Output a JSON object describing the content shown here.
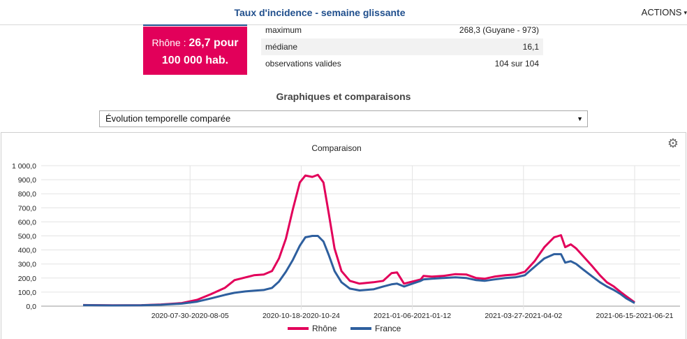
{
  "header": {
    "title": "Taux d'incidence - semaine glissante",
    "actions_label": "ACTIONS"
  },
  "highlight": {
    "region": "Rhône",
    "value": "26,7 pour",
    "unit": "100 000 hab."
  },
  "stats": [
    {
      "label": "maximum",
      "value": "268,3 (Guyane - 973)"
    },
    {
      "label": "médiane",
      "value": "16,1"
    },
    {
      "label": "observations valides",
      "value": "104 sur 104"
    }
  ],
  "section_title": "Graphiques et comparaisons",
  "select": {
    "value": "Évolution temporelle comparée"
  },
  "colors": {
    "rhone": "#e2005a",
    "france": "#2e5f9e",
    "header_blue": "#1f4e8c"
  },
  "chart_data": {
    "type": "line",
    "title": "Comparaison",
    "xlabel": "",
    "ylabel": "",
    "ylim": [
      0,
      1000
    ],
    "yticks": [
      "0,0",
      "100,0",
      "200,0",
      "300,0",
      "400,0",
      "500,0",
      "600,0",
      "700,0",
      "800,0",
      "900,0",
      "1 000,0"
    ],
    "x_start_date": "2020-05-20",
    "x_end_date": "2021-06-21",
    "xticks": [
      {
        "date": "2020-08-05",
        "label": "2020-07-30-2020-08-05"
      },
      {
        "date": "2020-10-24",
        "label": "2020-10-18-2020-10-24"
      },
      {
        "date": "2021-01-12",
        "label": "2021-01-06-2021-01-12"
      },
      {
        "date": "2021-04-02",
        "label": "2021-03-27-2021-04-02"
      },
      {
        "date": "2021-06-21",
        "label": "2021-06-15-2021-06-21"
      }
    ],
    "legend": "bottom-center",
    "series": [
      {
        "name": "Rhône",
        "points": [
          [
            "2020-05-20",
            8
          ],
          [
            "2020-06-10",
            6
          ],
          [
            "2020-07-01",
            7
          ],
          [
            "2020-07-15",
            12
          ],
          [
            "2020-07-30",
            22
          ],
          [
            "2020-08-10",
            45
          ],
          [
            "2020-08-20",
            85
          ],
          [
            "2020-08-30",
            130
          ],
          [
            "2020-09-06",
            185
          ],
          [
            "2020-09-14",
            205
          ],
          [
            "2020-09-20",
            220
          ],
          [
            "2020-09-27",
            225
          ],
          [
            "2020-10-03",
            250
          ],
          [
            "2020-10-08",
            340
          ],
          [
            "2020-10-13",
            480
          ],
          [
            "2020-10-18",
            690
          ],
          [
            "2020-10-23",
            880
          ],
          [
            "2020-10-27",
            930
          ],
          [
            "2020-11-01",
            920
          ],
          [
            "2020-11-05",
            935
          ],
          [
            "2020-11-09",
            880
          ],
          [
            "2020-11-13",
            650
          ],
          [
            "2020-11-17",
            410
          ],
          [
            "2020-11-22",
            250
          ],
          [
            "2020-11-28",
            180
          ],
          [
            "2020-12-05",
            160
          ],
          [
            "2020-12-15",
            170
          ],
          [
            "2020-12-22",
            180
          ],
          [
            "2020-12-28",
            235
          ],
          [
            "2021-01-01",
            240
          ],
          [
            "2021-01-06",
            160
          ],
          [
            "2021-01-12",
            175
          ],
          [
            "2021-01-18",
            190
          ],
          [
            "2021-01-20",
            215
          ],
          [
            "2021-01-26",
            210
          ],
          [
            "2021-02-03",
            215
          ],
          [
            "2021-02-12",
            228
          ],
          [
            "2021-02-20",
            225
          ],
          [
            "2021-02-27",
            200
          ],
          [
            "2021-03-05",
            195
          ],
          [
            "2021-03-12",
            210
          ],
          [
            "2021-03-20",
            220
          ],
          [
            "2021-03-27",
            225
          ],
          [
            "2021-04-03",
            245
          ],
          [
            "2021-04-10",
            320
          ],
          [
            "2021-04-17",
            420
          ],
          [
            "2021-04-24",
            490
          ],
          [
            "2021-04-29",
            505
          ],
          [
            "2021-05-02",
            420
          ],
          [
            "2021-05-06",
            440
          ],
          [
            "2021-05-10",
            410
          ],
          [
            "2021-05-15",
            355
          ],
          [
            "2021-05-21",
            290
          ],
          [
            "2021-05-27",
            220
          ],
          [
            "2021-06-01",
            170
          ],
          [
            "2021-06-06",
            140
          ],
          [
            "2021-06-11",
            100
          ],
          [
            "2021-06-15",
            70
          ],
          [
            "2021-06-21",
            27
          ]
        ]
      },
      {
        "name": "France",
        "points": [
          [
            "2020-05-20",
            7
          ],
          [
            "2020-06-10",
            5
          ],
          [
            "2020-07-01",
            6
          ],
          [
            "2020-07-15",
            10
          ],
          [
            "2020-07-30",
            18
          ],
          [
            "2020-08-10",
            32
          ],
          [
            "2020-08-20",
            55
          ],
          [
            "2020-08-30",
            80
          ],
          [
            "2020-09-06",
            95
          ],
          [
            "2020-09-14",
            105
          ],
          [
            "2020-09-20",
            110
          ],
          [
            "2020-09-27",
            115
          ],
          [
            "2020-10-03",
            130
          ],
          [
            "2020-10-08",
            175
          ],
          [
            "2020-10-13",
            245
          ],
          [
            "2020-10-18",
            330
          ],
          [
            "2020-10-23",
            430
          ],
          [
            "2020-10-27",
            490
          ],
          [
            "2020-11-01",
            500
          ],
          [
            "2020-11-05",
            500
          ],
          [
            "2020-11-09",
            460
          ],
          [
            "2020-11-13",
            360
          ],
          [
            "2020-11-17",
            250
          ],
          [
            "2020-11-22",
            170
          ],
          [
            "2020-11-28",
            125
          ],
          [
            "2020-12-05",
            112
          ],
          [
            "2020-12-15",
            120
          ],
          [
            "2020-12-22",
            140
          ],
          [
            "2020-12-28",
            155
          ],
          [
            "2021-01-01",
            160
          ],
          [
            "2021-01-06",
            140
          ],
          [
            "2021-01-12",
            160
          ],
          [
            "2021-01-18",
            180
          ],
          [
            "2021-01-20",
            190
          ],
          [
            "2021-01-26",
            195
          ],
          [
            "2021-02-03",
            200
          ],
          [
            "2021-02-12",
            205
          ],
          [
            "2021-02-20",
            200
          ],
          [
            "2021-02-27",
            185
          ],
          [
            "2021-03-05",
            180
          ],
          [
            "2021-03-12",
            190
          ],
          [
            "2021-03-20",
            200
          ],
          [
            "2021-03-27",
            205
          ],
          [
            "2021-04-03",
            220
          ],
          [
            "2021-04-10",
            280
          ],
          [
            "2021-04-17",
            340
          ],
          [
            "2021-04-24",
            370
          ],
          [
            "2021-04-29",
            370
          ],
          [
            "2021-05-02",
            310
          ],
          [
            "2021-05-06",
            320
          ],
          [
            "2021-05-10",
            300
          ],
          [
            "2021-05-15",
            260
          ],
          [
            "2021-05-21",
            215
          ],
          [
            "2021-05-27",
            170
          ],
          [
            "2021-06-01",
            140
          ],
          [
            "2021-06-06",
            115
          ],
          [
            "2021-06-11",
            85
          ],
          [
            "2021-06-15",
            55
          ],
          [
            "2021-06-21",
            22
          ]
        ]
      }
    ]
  }
}
